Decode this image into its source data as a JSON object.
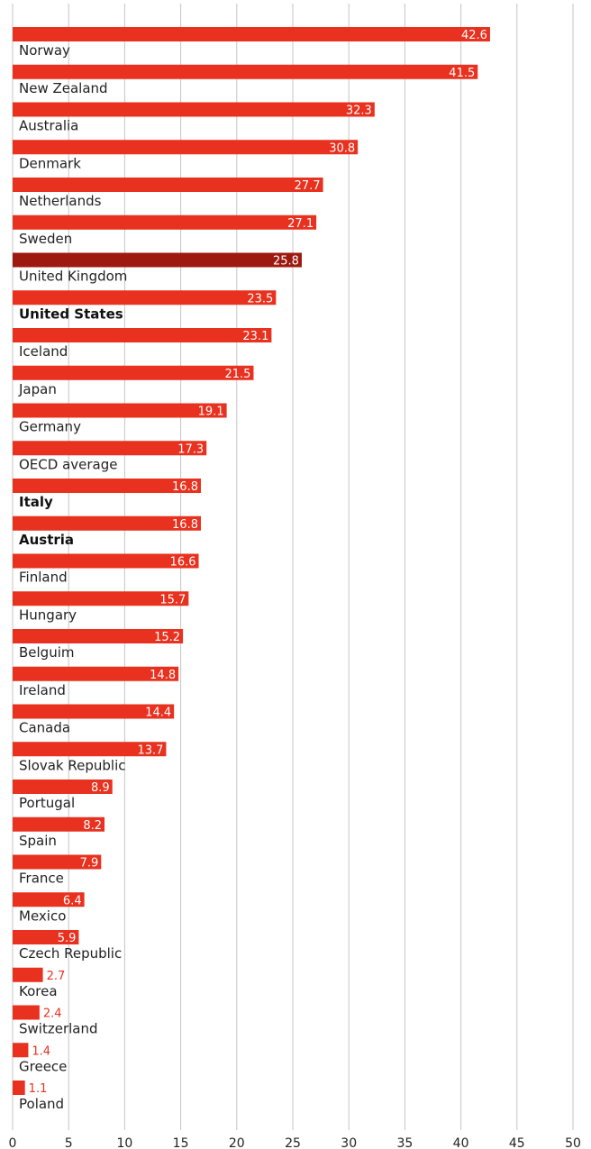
{
  "chart_data": {
    "type": "bar",
    "orientation": "horizontal",
    "title": "",
    "xlabel": "",
    "ylabel": "",
    "xlim": [
      0,
      50
    ],
    "xticks": [
      0,
      5,
      10,
      15,
      20,
      25,
      30,
      35,
      40,
      45,
      50
    ],
    "grid": "vertical",
    "bar_color": "#e8311f",
    "highlight_color": "#9e1a10",
    "categories": [
      "Norway",
      "New Zealand",
      "Australia",
      "Denmark",
      "Netherlands",
      "Sweden",
      "United Kingdom",
      "United States",
      "Iceland",
      "Japan",
      "Germany",
      "OECD average",
      "Italy",
      "Austria",
      "Finland",
      "Hungary",
      "Belguim",
      "Ireland",
      "Canada",
      "Slovak Republic",
      "Portugal",
      "Spain",
      "France",
      "Mexico",
      "Czech Republic",
      "Korea",
      "Switzerland",
      "Greece",
      "Poland"
    ],
    "values": [
      42.6,
      41.5,
      32.3,
      30.8,
      27.7,
      27.1,
      25.8,
      23.5,
      23.1,
      21.5,
      19.1,
      17.3,
      16.8,
      16.8,
      16.6,
      15.7,
      15.2,
      14.8,
      14.4,
      13.7,
      8.9,
      8.2,
      7.9,
      6.4,
      5.9,
      2.7,
      2.4,
      1.4,
      1.1
    ],
    "value_labels": [
      "42.6",
      "41.5",
      "32.3",
      "30.8",
      "27.7",
      "27.1",
      "25.8",
      "23.5",
      "23.1",
      "21.5",
      "19.1",
      "17.3",
      "16.8",
      "16.8",
      "16.6",
      "15.7",
      "15.2",
      "14.8",
      "14.4",
      "13.7",
      "8.9",
      "8.2",
      "7.9",
      "6.4",
      "5.9",
      "2.7",
      "2.4",
      "1.4",
      "1.1"
    ],
    "highlighted": [
      "United Kingdom"
    ],
    "bold_labels": [
      "United States",
      "Italy",
      "Austria"
    ]
  }
}
